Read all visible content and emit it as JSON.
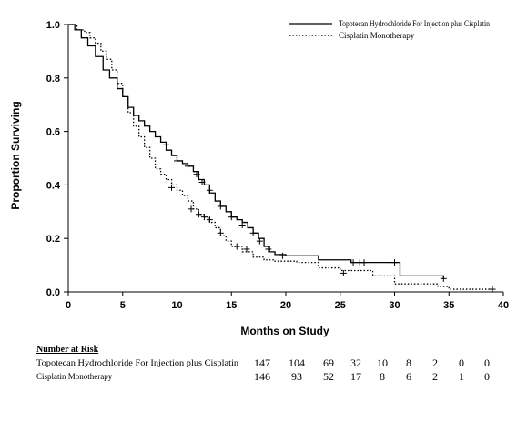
{
  "chart_data": {
    "type": "line",
    "xlabel": "Months on Study",
    "ylabel": "Proportion Surviving",
    "xlim": [
      0,
      40
    ],
    "ylim": [
      0,
      1.0
    ],
    "x_ticks": [
      "0",
      "5",
      "10",
      "15",
      "20",
      "25",
      "30",
      "35",
      "40"
    ],
    "y_ticks": [
      "0.0",
      "0.2",
      "0.4",
      "0.6",
      "0.8",
      "1.0"
    ],
    "legend_position": "top-right",
    "series": [
      {
        "name": "Topotecan Hydrochloride For Injection plus Cisplatin",
        "style": "solid",
        "steps": [
          [
            0,
            1.0
          ],
          [
            0.6,
            0.98
          ],
          [
            1.2,
            0.95
          ],
          [
            1.8,
            0.92
          ],
          [
            2.5,
            0.88
          ],
          [
            3.2,
            0.83
          ],
          [
            3.8,
            0.8
          ],
          [
            4.5,
            0.76
          ],
          [
            5,
            0.73
          ],
          [
            5.5,
            0.69
          ],
          [
            6,
            0.66
          ],
          [
            6.5,
            0.64
          ],
          [
            7,
            0.62
          ],
          [
            7.5,
            0.6
          ],
          [
            8,
            0.58
          ],
          [
            8.5,
            0.56
          ],
          [
            9,
            0.53
          ],
          [
            9.5,
            0.51
          ],
          [
            10,
            0.49
          ],
          [
            10.5,
            0.48
          ],
          [
            11,
            0.47
          ],
          [
            11.5,
            0.45
          ],
          [
            12,
            0.42
          ],
          [
            12.5,
            0.4
          ],
          [
            13,
            0.37
          ],
          [
            13.5,
            0.34
          ],
          [
            14,
            0.32
          ],
          [
            14.5,
            0.3
          ],
          [
            15,
            0.28
          ],
          [
            15.5,
            0.27
          ],
          [
            16,
            0.26
          ],
          [
            16.5,
            0.24
          ],
          [
            17,
            0.22
          ],
          [
            17.5,
            0.2
          ],
          [
            18,
            0.17
          ],
          [
            18.5,
            0.15
          ],
          [
            19,
            0.14
          ],
          [
            20,
            0.135
          ],
          [
            23,
            0.12
          ],
          [
            26,
            0.11
          ],
          [
            30.5,
            0.06
          ],
          [
            34.5,
            0.05
          ]
        ],
        "censored": [
          [
            9,
            0.55
          ],
          [
            10,
            0.49
          ],
          [
            11,
            0.47
          ],
          [
            11.8,
            0.44
          ],
          [
            12.3,
            0.41
          ],
          [
            13,
            0.38
          ],
          [
            14,
            0.32
          ],
          [
            15,
            0.28
          ],
          [
            16,
            0.25
          ],
          [
            17,
            0.22
          ],
          [
            17.6,
            0.19
          ],
          [
            18.4,
            0.16
          ],
          [
            19.7,
            0.135
          ],
          [
            26.2,
            0.11
          ],
          [
            26.8,
            0.11
          ],
          [
            27.2,
            0.11
          ],
          [
            30,
            0.11
          ],
          [
            34.5,
            0.05
          ]
        ]
      },
      {
        "name": "Cisplatin Monotherapy",
        "style": "dotted",
        "steps": [
          [
            0,
            1.0
          ],
          [
            0.8,
            0.98
          ],
          [
            1.5,
            0.97
          ],
          [
            2,
            0.95
          ],
          [
            2.5,
            0.93
          ],
          [
            3,
            0.9
          ],
          [
            3.5,
            0.87
          ],
          [
            4,
            0.83
          ],
          [
            4.5,
            0.78
          ],
          [
            5,
            0.73
          ],
          [
            5.5,
            0.67
          ],
          [
            6,
            0.62
          ],
          [
            6.5,
            0.58
          ],
          [
            7,
            0.54
          ],
          [
            7.5,
            0.5
          ],
          [
            8,
            0.46
          ],
          [
            8.5,
            0.44
          ],
          [
            9,
            0.42
          ],
          [
            9.5,
            0.4
          ],
          [
            10,
            0.38
          ],
          [
            10.5,
            0.36
          ],
          [
            11,
            0.34
          ],
          [
            11.5,
            0.31
          ],
          [
            12,
            0.29
          ],
          [
            12.5,
            0.28
          ],
          [
            13,
            0.26
          ],
          [
            13.5,
            0.24
          ],
          [
            14,
            0.21
          ],
          [
            14.5,
            0.19
          ],
          [
            15,
            0.17
          ],
          [
            16,
            0.15
          ],
          [
            17,
            0.13
          ],
          [
            18,
            0.12
          ],
          [
            19,
            0.115
          ],
          [
            21,
            0.11
          ],
          [
            23,
            0.09
          ],
          [
            25,
            0.08
          ],
          [
            28,
            0.06
          ],
          [
            30,
            0.03
          ],
          [
            34,
            0.02
          ],
          [
            35,
            0.01
          ],
          [
            39,
            0.01
          ]
        ],
        "censored": [
          [
            9.5,
            0.39
          ],
          [
            11.3,
            0.31
          ],
          [
            12,
            0.29
          ],
          [
            12.5,
            0.28
          ],
          [
            13,
            0.27
          ],
          [
            14,
            0.22
          ],
          [
            15.5,
            0.17
          ],
          [
            16.4,
            0.16
          ],
          [
            25.3,
            0.07
          ],
          [
            39,
            0.01
          ]
        ]
      }
    ],
    "risk_table": {
      "title": "Number at Risk",
      "rows": [
        {
          "label": "Topotecan Hydrochloride For Injection plus Cisplatin",
          "values": [
            "147",
            "104",
            "69",
            "32",
            "10",
            "8",
            "2",
            "0",
            "0"
          ]
        },
        {
          "label": "Cisplatin Monotherapy",
          "values": [
            "146",
            "93",
            "52",
            "17",
            "8",
            "6",
            "2",
            "1",
            "0"
          ]
        }
      ]
    }
  },
  "colors": {
    "line": "#000000",
    "background": "#ffffff"
  }
}
